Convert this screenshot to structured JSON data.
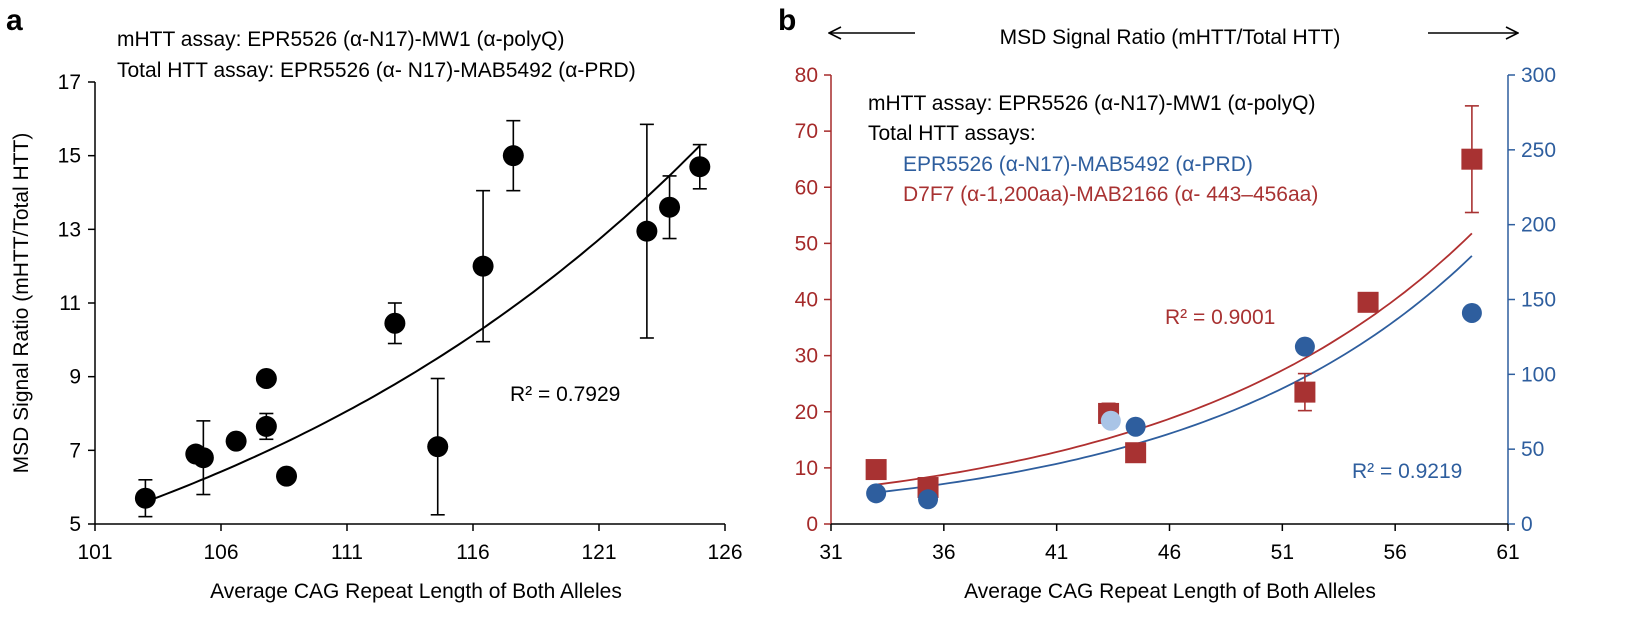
{
  "chart_data": [
    {
      "panel": "a",
      "type": "scatter",
      "title_lines": [
        "mHTT assay: EPR5526 (α-N17)-MW1 (α-polyQ)",
        "Total HTT assay: EPR5526 (α- N17)-MAB5492 (α-PRD)"
      ],
      "xlabel": "Average CAG Repeat Length of Both Alleles",
      "ylabel": "MSD Signal Ratio (mHTT/Total HTT)",
      "xlim": [
        101,
        126
      ],
      "ylim": [
        5,
        17
      ],
      "xticks": [
        "101",
        "106",
        "111",
        "116",
        "121",
        "126"
      ],
      "yticks": [
        "5",
        "7",
        "9",
        "11",
        "13",
        "15",
        "17"
      ],
      "point_color": "#000000",
      "points": [
        {
          "x": 103.0,
          "y": 5.7,
          "err": 0.5
        },
        {
          "x": 105.0,
          "y": 6.9,
          "err": null
        },
        {
          "x": 105.3,
          "y": 6.8,
          "err": 1.0
        },
        {
          "x": 106.6,
          "y": 7.25,
          "err": null
        },
        {
          "x": 107.8,
          "y": 8.95,
          "err": null
        },
        {
          "x": 107.8,
          "y": 7.65,
          "err": 0.35
        },
        {
          "x": 108.6,
          "y": 6.3,
          "err": null
        },
        {
          "x": 112.9,
          "y": 10.45,
          "err": 0.55
        },
        {
          "x": 114.6,
          "y": 7.1,
          "err": 1.85
        },
        {
          "x": 116.4,
          "y": 12.0,
          "err": 2.05
        },
        {
          "x": 117.6,
          "y": 15.0,
          "err": 0.95
        },
        {
          "x": 122.9,
          "y": 12.95,
          "err": 2.9
        },
        {
          "x": 123.8,
          "y": 13.6,
          "err": 0.85
        },
        {
          "x": 125.0,
          "y": 14.7,
          "err": 0.6
        }
      ],
      "fit": {
        "type": "exponential",
        "a": 5.6,
        "b": 0.0456,
        "x0": 103,
        "x_range": [
          103,
          125
        ]
      },
      "r_squared_label": "R² = 0.7929"
    },
    {
      "panel": "b",
      "type": "scatter",
      "header_text": "MSD Signal Ratio (mHTT/Total HTT)",
      "legend_lines": [
        "mHTT assay: EPR5526 (α-N17)-MW1 (α-polyQ)",
        "Total HTT assays:"
      ],
      "xlabel": "Average CAG Repeat Length of Both Alleles",
      "xlim": [
        31,
        61
      ],
      "ylim_left": [
        0,
        80
      ],
      "ylim_right": [
        0,
        300
      ],
      "xticks": [
        "31",
        "36",
        "41",
        "46",
        "51",
        "56",
        "61"
      ],
      "yticks_left": [
        "0",
        "10",
        "20",
        "30",
        "40",
        "50",
        "60",
        "70",
        "80"
      ],
      "yticks_right": [
        "0",
        "50",
        "100",
        "150",
        "200",
        "250",
        "300"
      ],
      "left_axis_color": "#a52a2a",
      "right_axis_color": "#2e5e9e",
      "series": [
        {
          "name": "D7F7 (α-1,200aa)-MAB2166 (α- 443–456aa)",
          "axis": "left",
          "marker": "square",
          "color": "#a83232",
          "points": [
            {
              "x": 33.0,
              "y": 9.7,
              "err": null
            },
            {
              "x": 35.3,
              "y": 6.5,
              "err": null
            },
            {
              "x": 43.3,
              "y": 19.7,
              "err": 1.8
            },
            {
              "x": 44.5,
              "y": 12.7,
              "err": 1.3
            },
            {
              "x": 52.0,
              "y": 23.5,
              "err": 3.3
            },
            {
              "x": 54.8,
              "y": 39.5,
              "err": 1.5
            },
            {
              "x": 59.4,
              "y": 65.0,
              "err": 9.5
            }
          ],
          "fit": {
            "type": "exponential",
            "a": 7.0,
            "b": 0.0758,
            "x0": 33,
            "x_range": [
              33,
              59.4
            ]
          },
          "r_squared_label": "R² = 0.9001"
        },
        {
          "name": "EPR5526 (α-N17)-MAB5492 (α-PRD)",
          "axis": "right",
          "marker": "circle",
          "color": "#2e5e9e",
          "points": [
            {
              "x": 33.0,
              "y": 20.5,
              "err": null
            },
            {
              "x": 35.3,
              "y": 16.5,
              "err": null
            },
            {
              "x": 43.4,
              "y": 69.0,
              "err": null,
              "color": "#a9c4e6"
            },
            {
              "x": 44.5,
              "y": 65.0,
              "err": null
            },
            {
              "x": 52.0,
              "y": 118.5,
              "err": null
            },
            {
              "x": 59.4,
              "y": 141.0,
              "err": 4.0
            }
          ],
          "fit": {
            "type": "exponential",
            "a": 21.0,
            "b": 0.0812,
            "x0": 33,
            "x_range": [
              33,
              59.4
            ]
          },
          "r_squared_label": "R² = 0.9219"
        }
      ]
    }
  ],
  "panel_labels": {
    "a": "a",
    "b": "b"
  }
}
